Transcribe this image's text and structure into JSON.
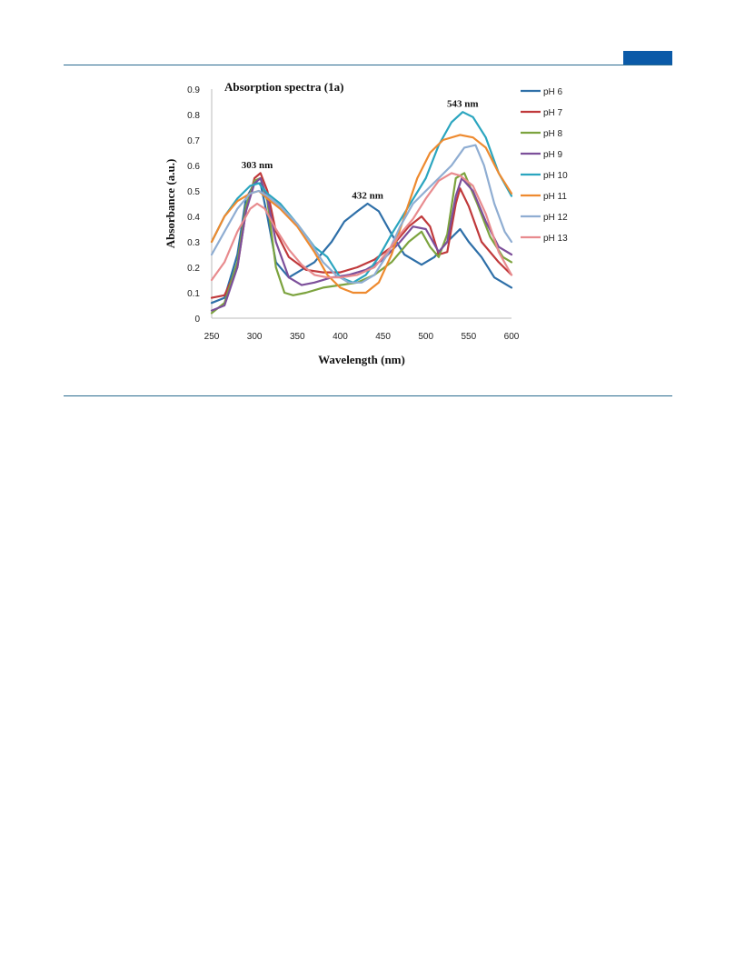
{
  "header": {
    "badge_color": "#0b5aa8",
    "rule_color": "#2a6b8f"
  },
  "chart_data": {
    "type": "line",
    "title": "Absorption spectra (1a)",
    "xlabel": "Wavelength (nm)",
    "ylabel": "Absorbance (a.u.)",
    "xlim": [
      250,
      600
    ],
    "ylim": [
      0,
      0.9
    ],
    "xticks": [
      250,
      300,
      350,
      400,
      450,
      500,
      550,
      600
    ],
    "yticks": [
      0,
      0.1,
      0.2,
      0.3,
      0.4,
      0.5,
      0.6,
      0.7,
      0.8,
      0.9
    ],
    "ytick_labels": [
      "0",
      "0.1",
      "0.2",
      "0.3",
      "0.4",
      "0.5",
      "0.6",
      "0.7",
      "0.8",
      "0.9"
    ],
    "grid": false,
    "legend_position": "right",
    "annotations": [
      {
        "text": "303 nm",
        "x": 303,
        "y": 0.59
      },
      {
        "text": "432 nm",
        "x": 432,
        "y": 0.47
      },
      {
        "text": "543 nm",
        "x": 543,
        "y": 0.83
      }
    ],
    "series": [
      {
        "name": "pH 6",
        "color": "#2e6fa8",
        "points": [
          [
            250,
            0.06
          ],
          [
            265,
            0.08
          ],
          [
            280,
            0.25
          ],
          [
            290,
            0.47
          ],
          [
            300,
            0.53
          ],
          [
            307,
            0.53
          ],
          [
            315,
            0.4
          ],
          [
            325,
            0.22
          ],
          [
            340,
            0.16
          ],
          [
            355,
            0.19
          ],
          [
            370,
            0.22
          ],
          [
            390,
            0.3
          ],
          [
            405,
            0.38
          ],
          [
            420,
            0.42
          ],
          [
            432,
            0.45
          ],
          [
            445,
            0.42
          ],
          [
            460,
            0.33
          ],
          [
            475,
            0.25
          ],
          [
            495,
            0.21
          ],
          [
            510,
            0.24
          ],
          [
            525,
            0.3
          ],
          [
            540,
            0.35
          ],
          [
            550,
            0.3
          ],
          [
            565,
            0.24
          ],
          [
            580,
            0.16
          ],
          [
            600,
            0.12
          ]
        ]
      },
      {
        "name": "pH 7",
        "color": "#c0393b",
        "points": [
          [
            250,
            0.08
          ],
          [
            265,
            0.09
          ],
          [
            280,
            0.2
          ],
          [
            290,
            0.42
          ],
          [
            300,
            0.55
          ],
          [
            307,
            0.57
          ],
          [
            315,
            0.5
          ],
          [
            325,
            0.34
          ],
          [
            340,
            0.24
          ],
          [
            360,
            0.19
          ],
          [
            380,
            0.18
          ],
          [
            400,
            0.18
          ],
          [
            420,
            0.2
          ],
          [
            440,
            0.23
          ],
          [
            460,
            0.28
          ],
          [
            480,
            0.36
          ],
          [
            495,
            0.4
          ],
          [
            505,
            0.36
          ],
          [
            515,
            0.25
          ],
          [
            525,
            0.26
          ],
          [
            535,
            0.45
          ],
          [
            540,
            0.51
          ],
          [
            550,
            0.44
          ],
          [
            565,
            0.3
          ],
          [
            585,
            0.22
          ],
          [
            600,
            0.17
          ]
        ]
      },
      {
        "name": "pH 8",
        "color": "#7ca33e",
        "points": [
          [
            250,
            0.02
          ],
          [
            265,
            0.06
          ],
          [
            280,
            0.22
          ],
          [
            290,
            0.44
          ],
          [
            300,
            0.54
          ],
          [
            307,
            0.55
          ],
          [
            315,
            0.46
          ],
          [
            325,
            0.2
          ],
          [
            335,
            0.1
          ],
          [
            345,
            0.09
          ],
          [
            360,
            0.1
          ],
          [
            380,
            0.12
          ],
          [
            400,
            0.13
          ],
          [
            420,
            0.14
          ],
          [
            440,
            0.17
          ],
          [
            460,
            0.22
          ],
          [
            480,
            0.3
          ],
          [
            495,
            0.34
          ],
          [
            505,
            0.28
          ],
          [
            515,
            0.24
          ],
          [
            525,
            0.33
          ],
          [
            535,
            0.55
          ],
          [
            545,
            0.57
          ],
          [
            560,
            0.45
          ],
          [
            575,
            0.32
          ],
          [
            590,
            0.24
          ],
          [
            600,
            0.22
          ]
        ]
      },
      {
        "name": "pH 9",
        "color": "#7c4f9a",
        "points": [
          [
            250,
            0.03
          ],
          [
            265,
            0.05
          ],
          [
            280,
            0.2
          ],
          [
            290,
            0.42
          ],
          [
            300,
            0.53
          ],
          [
            307,
            0.55
          ],
          [
            315,
            0.47
          ],
          [
            325,
            0.3
          ],
          [
            340,
            0.16
          ],
          [
            355,
            0.13
          ],
          [
            370,
            0.14
          ],
          [
            390,
            0.16
          ],
          [
            410,
            0.17
          ],
          [
            430,
            0.19
          ],
          [
            450,
            0.23
          ],
          [
            470,
            0.3
          ],
          [
            485,
            0.36
          ],
          [
            500,
            0.35
          ],
          [
            515,
            0.26
          ],
          [
            525,
            0.3
          ],
          [
            535,
            0.48
          ],
          [
            542,
            0.55
          ],
          [
            555,
            0.5
          ],
          [
            570,
            0.38
          ],
          [
            585,
            0.28
          ],
          [
            600,
            0.25
          ]
        ]
      },
      {
        "name": "pH 10",
        "color": "#2aa5bf",
        "points": [
          [
            250,
            0.3
          ],
          [
            265,
            0.4
          ],
          [
            280,
            0.47
          ],
          [
            295,
            0.52
          ],
          [
            305,
            0.53
          ],
          [
            315,
            0.49
          ],
          [
            330,
            0.45
          ],
          [
            350,
            0.37
          ],
          [
            370,
            0.28
          ],
          [
            385,
            0.24
          ],
          [
            400,
            0.16
          ],
          [
            415,
            0.14
          ],
          [
            430,
            0.17
          ],
          [
            445,
            0.24
          ],
          [
            460,
            0.33
          ],
          [
            480,
            0.44
          ],
          [
            500,
            0.55
          ],
          [
            515,
            0.68
          ],
          [
            530,
            0.77
          ],
          [
            543,
            0.81
          ],
          [
            555,
            0.79
          ],
          [
            570,
            0.71
          ],
          [
            585,
            0.57
          ],
          [
            600,
            0.48
          ]
        ]
      },
      {
        "name": "pH 11",
        "color": "#ee8a2f",
        "points": [
          [
            250,
            0.3
          ],
          [
            265,
            0.4
          ],
          [
            280,
            0.46
          ],
          [
            295,
            0.49
          ],
          [
            305,
            0.5
          ],
          [
            315,
            0.47
          ],
          [
            330,
            0.43
          ],
          [
            350,
            0.36
          ],
          [
            370,
            0.26
          ],
          [
            385,
            0.17
          ],
          [
            400,
            0.12
          ],
          [
            415,
            0.1
          ],
          [
            430,
            0.1
          ],
          [
            445,
            0.14
          ],
          [
            460,
            0.25
          ],
          [
            475,
            0.4
          ],
          [
            490,
            0.55
          ],
          [
            505,
            0.65
          ],
          [
            520,
            0.7
          ],
          [
            540,
            0.72
          ],
          [
            555,
            0.71
          ],
          [
            570,
            0.67
          ],
          [
            585,
            0.57
          ],
          [
            600,
            0.49
          ]
        ]
      },
      {
        "name": "pH 12",
        "color": "#8fadd2",
        "points": [
          [
            250,
            0.25
          ],
          [
            265,
            0.34
          ],
          [
            280,
            0.43
          ],
          [
            295,
            0.49
          ],
          [
            305,
            0.5
          ],
          [
            315,
            0.48
          ],
          [
            330,
            0.44
          ],
          [
            350,
            0.37
          ],
          [
            365,
            0.3
          ],
          [
            380,
            0.22
          ],
          [
            395,
            0.17
          ],
          [
            410,
            0.14
          ],
          [
            425,
            0.14
          ],
          [
            440,
            0.17
          ],
          [
            455,
            0.25
          ],
          [
            470,
            0.36
          ],
          [
            485,
            0.45
          ],
          [
            500,
            0.5
          ],
          [
            515,
            0.55
          ],
          [
            530,
            0.6
          ],
          [
            545,
            0.67
          ],
          [
            558,
            0.68
          ],
          [
            568,
            0.6
          ],
          [
            580,
            0.45
          ],
          [
            592,
            0.34
          ],
          [
            600,
            0.3
          ]
        ]
      },
      {
        "name": "pH 13",
        "color": "#e88b8e",
        "points": [
          [
            250,
            0.15
          ],
          [
            265,
            0.22
          ],
          [
            280,
            0.34
          ],
          [
            295,
            0.43
          ],
          [
            303,
            0.45
          ],
          [
            312,
            0.43
          ],
          [
            325,
            0.35
          ],
          [
            340,
            0.27
          ],
          [
            355,
            0.21
          ],
          [
            370,
            0.17
          ],
          [
            385,
            0.16
          ],
          [
            400,
            0.16
          ],
          [
            420,
            0.17
          ],
          [
            440,
            0.2
          ],
          [
            455,
            0.26
          ],
          [
            470,
            0.33
          ],
          [
            485,
            0.39
          ],
          [
            500,
            0.47
          ],
          [
            515,
            0.54
          ],
          [
            530,
            0.57
          ],
          [
            540,
            0.56
          ],
          [
            555,
            0.52
          ],
          [
            570,
            0.41
          ],
          [
            585,
            0.26
          ],
          [
            600,
            0.17
          ]
        ]
      }
    ]
  }
}
